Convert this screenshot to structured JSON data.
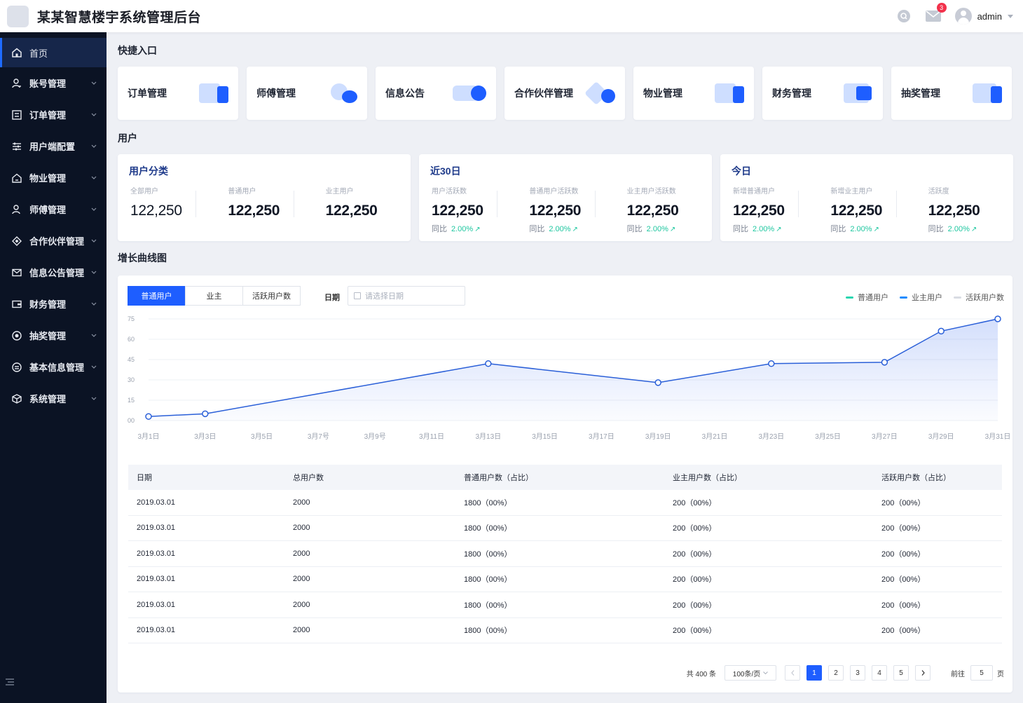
{
  "header": {
    "app_title": "某某智慧楼宇系统管理后台",
    "notification_count": "3",
    "username": "admin"
  },
  "sidebar": {
    "items": [
      {
        "label": "首页",
        "icon": "home-icon"
      },
      {
        "label": "账号管理",
        "icon": "user-icon"
      },
      {
        "label": "订单管理",
        "icon": "order-icon"
      },
      {
        "label": "用户端配置",
        "icon": "sliders-icon"
      },
      {
        "label": "物业管理",
        "icon": "house-icon"
      },
      {
        "label": "师傅管理",
        "icon": "worker-icon"
      },
      {
        "label": "合作伙伴管理",
        "icon": "diamond-icon"
      },
      {
        "label": "信息公告管理",
        "icon": "mail-icon"
      },
      {
        "label": "财务管理",
        "icon": "wallet-icon"
      },
      {
        "label": "抽奖管理",
        "icon": "target-icon"
      },
      {
        "label": "基本信息管理",
        "icon": "info-icon"
      },
      {
        "label": "系统管理",
        "icon": "cube-icon"
      }
    ]
  },
  "quick": {
    "title": "快捷入口",
    "items": [
      {
        "label": "订单管理"
      },
      {
        "label": "师傅管理"
      },
      {
        "label": "信息公告"
      },
      {
        "label": "合作伙伴管理"
      },
      {
        "label": "物业管理"
      },
      {
        "label": "财务管理"
      },
      {
        "label": "抽奖管理"
      }
    ]
  },
  "users": {
    "title": "用户",
    "cards": [
      {
        "title": "用户分类",
        "cols": [
          {
            "label": "全部用户",
            "value": "122,250"
          },
          {
            "label": "普通用户",
            "value": "122,250"
          },
          {
            "label": "业主用户",
            "value": "122,250"
          }
        ]
      },
      {
        "title": "近30日",
        "cols": [
          {
            "label": "用户活跃数",
            "value": "122,250",
            "cmp_label": "同比",
            "cmp_value": "2.00%"
          },
          {
            "label": "普通用户活跃数",
            "value": "122,250",
            "cmp_label": "同比",
            "cmp_value": "2.00%"
          },
          {
            "label": "业主用户活跃数",
            "value": "122,250",
            "cmp_label": "同比",
            "cmp_value": "2.00%"
          }
        ]
      },
      {
        "title": "今日",
        "cols": [
          {
            "label": "新增普通用户",
            "value": "122,250",
            "cmp_label": "同比",
            "cmp_value": "2.00%"
          },
          {
            "label": "新增业主用户",
            "value": "122,250",
            "cmp_label": "同比",
            "cmp_value": "2.00%"
          },
          {
            "label": "活跃度",
            "value": "122,250",
            "cmp_label": "同比",
            "cmp_value": "2.00%"
          }
        ]
      }
    ]
  },
  "growth": {
    "title": "增长曲线图",
    "tabs": [
      "普通用户",
      "业主",
      "活跃用户数"
    ],
    "date_label": "日期",
    "date_placeholder": "请选择日期",
    "legend": [
      {
        "name": "普通用户",
        "color": "#2ad6b0"
      },
      {
        "name": "业主用户",
        "color": "#1e8cff"
      },
      {
        "name": "活跃用户数",
        "color": "#d9dce3"
      }
    ]
  },
  "chart_data": {
    "type": "area",
    "title": "",
    "xlabel": "",
    "ylabel": "",
    "ylim": [
      0,
      75
    ],
    "y_ticks": [
      "00",
      "15",
      "30",
      "45",
      "60",
      "75"
    ],
    "y_tick_values": [
      0,
      15,
      30,
      45,
      60,
      75
    ],
    "categories": [
      "3月1日",
      "3月3日",
      "3月5日",
      "3月7号",
      "3月9号",
      "3月11日",
      "3月13日",
      "3月15日",
      "3月17日",
      "3月19日",
      "3月21日",
      "3月23日",
      "3月25日",
      "3月27日",
      "3月29日",
      "3月31日"
    ],
    "series": [
      {
        "name": "普通用户",
        "color": "#2a5fd8",
        "points": [
          {
            "x": 1,
            "y": 3
          },
          {
            "x": 3,
            "y": 5
          },
          {
            "x": 13,
            "y": 42
          },
          {
            "x": 19,
            "y": 28
          },
          {
            "x": 23,
            "y": 42
          },
          {
            "x": 27,
            "y": 43
          },
          {
            "x": 29,
            "y": 66
          },
          {
            "x": 31,
            "y": 75
          }
        ]
      }
    ]
  },
  "table": {
    "headers": [
      "日期",
      "总用户数",
      "普通用户数（占比）",
      "业主用户数（占比）",
      "活跃用户数（占比）"
    ],
    "rows": [
      [
        "2019.03.01",
        "2000",
        "1800（00%）",
        "200（00%）",
        "200（00%）"
      ],
      [
        "2019.03.01",
        "2000",
        "1800（00%）",
        "200（00%）",
        "200（00%）"
      ],
      [
        "2019.03.01",
        "2000",
        "1800（00%）",
        "200（00%）",
        "200（00%）"
      ],
      [
        "2019.03.01",
        "2000",
        "1800（00%）",
        "200（00%）",
        "200（00%）"
      ],
      [
        "2019.03.01",
        "2000",
        "1800（00%）",
        "200（00%）",
        "200（00%）"
      ],
      [
        "2019.03.01",
        "2000",
        "1800（00%）",
        "200（00%）",
        "200（00%）"
      ]
    ]
  },
  "pagination": {
    "total": "共 400 条",
    "page_size": "100条/页",
    "pages": [
      "1",
      "2",
      "3",
      "4",
      "5"
    ],
    "current": "1",
    "goto_label": "前往",
    "goto_value": "5",
    "page_suffix": "页"
  }
}
